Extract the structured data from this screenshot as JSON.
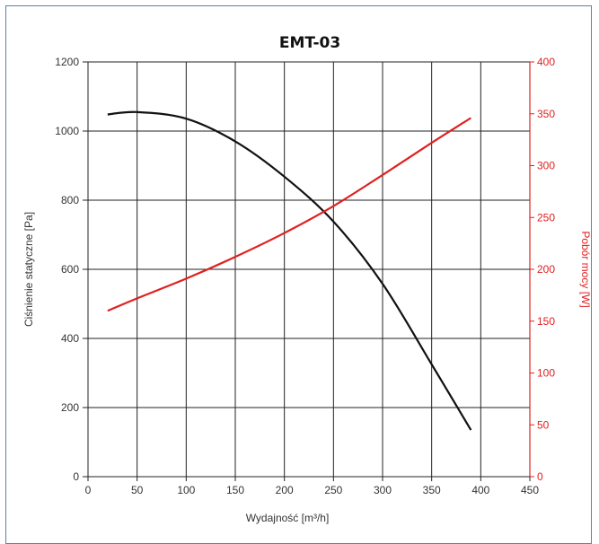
{
  "chart_data": {
    "type": "line",
    "title": "EMT-03",
    "xlabel": "Wydajność [m³/h]",
    "ylabel_left": "Ciśnienie statyczne [Pa]",
    "ylabel_right": "Pobór mocy [W]",
    "xlim": [
      0,
      450
    ],
    "ylim_left": [
      0,
      1200
    ],
    "ylim_right": [
      0,
      400
    ],
    "x_ticks": [
      0,
      50,
      100,
      150,
      200,
      250,
      300,
      350,
      400,
      450
    ],
    "y_ticks_left": [
      0,
      200,
      400,
      600,
      800,
      1000,
      1200
    ],
    "y_ticks_right": [
      0,
      50,
      100,
      150,
      200,
      250,
      300,
      350,
      400
    ],
    "grid": true,
    "series": [
      {
        "axis": "left",
        "color": "#111111",
        "x": [
          20,
          50,
          100,
          150,
          200,
          250,
          300,
          350,
          390
        ],
        "y": [
          1048,
          1055,
          1036,
          970,
          868,
          738,
          558,
          325,
          135
        ]
      },
      {
        "axis": "right",
        "color": "#e02020",
        "x": [
          20,
          50,
          100,
          150,
          200,
          250,
          300,
          350,
          390
        ],
        "y": [
          160,
          172,
          191,
          212,
          235,
          261,
          291,
          322,
          346
        ]
      }
    ]
  }
}
